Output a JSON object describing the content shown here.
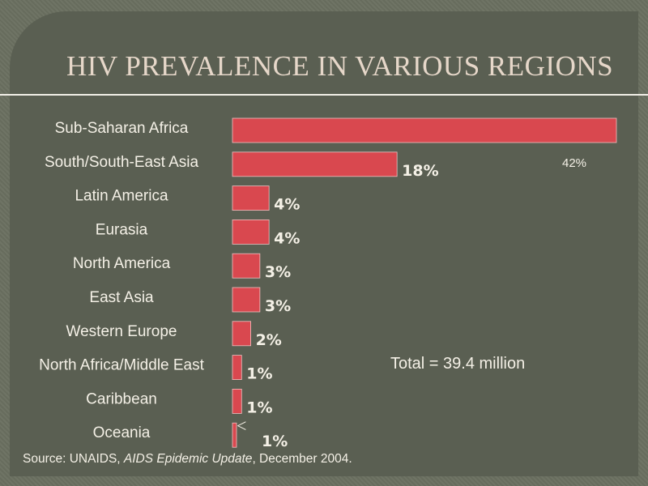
{
  "title": "HIV PREVALENCE IN VARIOUS REGIONS",
  "total_note": "Total = 39.4 million",
  "sub_saharan_value_label": "42%",
  "less_than_symbol": "<",
  "source": {
    "prefix": "Source: UNAIDS, ",
    "publication": "AIDS Epidemic Update",
    "suffix": ", December 2004."
  },
  "colors": {
    "bar": "#d9484f",
    "text": "#f4f0e6",
    "title": "#e6d7c9",
    "background": "#5a5f52"
  },
  "chart_data": {
    "type": "bar",
    "orientation": "horizontal",
    "categories": [
      "Sub-Saharan Africa",
      "South/South-East Asia",
      "Latin America",
      "Eurasia",
      "North America",
      "East Asia",
      "Western Europe",
      "North Africa/Middle East",
      "Caribbean",
      "Oceania"
    ],
    "values": [
      42,
      18,
      4,
      4,
      3,
      3,
      2,
      1,
      1,
      1
    ],
    "value_labels": [
      "",
      "18%",
      "4%",
      "4%",
      "3%",
      "3%",
      "2%",
      "1%",
      "1%",
      "1%"
    ],
    "units": "%",
    "xlim": [
      0,
      42
    ]
  }
}
